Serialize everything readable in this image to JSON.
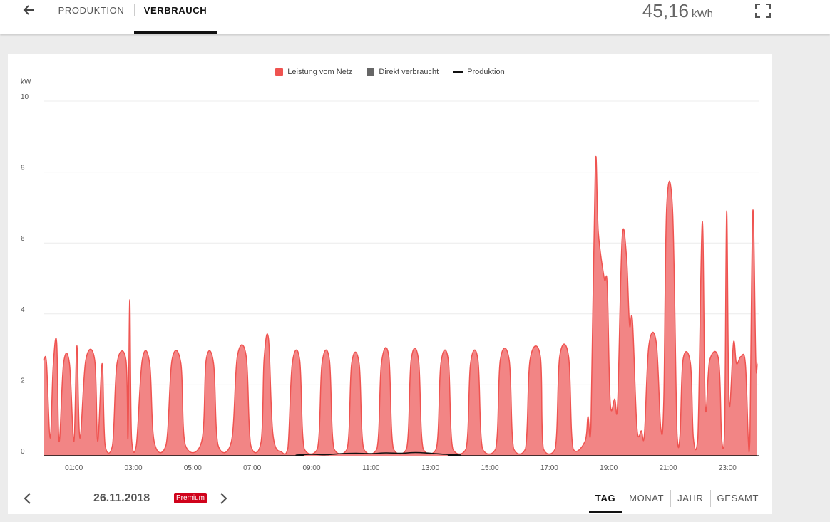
{
  "header": {
    "tabs": [
      {
        "label": "PRODUKTION",
        "active": false
      },
      {
        "label": "VERBRAUCH",
        "active": true
      }
    ],
    "total_value": "45,16",
    "total_unit": "kWh"
  },
  "footer": {
    "date": "26.11.2018",
    "badge": "Premium",
    "ranges": [
      {
        "label": "TAG",
        "active": true
      },
      {
        "label": "MONAT",
        "active": false
      },
      {
        "label": "JAHR",
        "active": false
      },
      {
        "label": "GESAMT",
        "active": false
      }
    ]
  },
  "colors": {
    "grid_draw": "#ef5350",
    "grid_fill": "#f28585",
    "direct": "#666666",
    "production": "#111111",
    "premium": "#d0021b"
  },
  "chart_data": {
    "type": "area",
    "ylabel": "kW",
    "ylim": [
      0,
      10
    ],
    "yticks": [
      "0",
      "2",
      "4",
      "6",
      "8",
      "10"
    ],
    "xlim": [
      0,
      24
    ],
    "xticks": [
      {
        "t": 1,
        "label": "01:00"
      },
      {
        "t": 3,
        "label": "03:00"
      },
      {
        "t": 5,
        "label": "05:00"
      },
      {
        "t": 7,
        "label": "07:00"
      },
      {
        "t": 9,
        "label": "09:00"
      },
      {
        "t": 11,
        "label": "11:00"
      },
      {
        "t": 13,
        "label": "13:00"
      },
      {
        "t": 15,
        "label": "15:00"
      },
      {
        "t": 17,
        "label": "17:00"
      },
      {
        "t": 19,
        "label": "19:00"
      },
      {
        "t": 21,
        "label": "21:00"
      },
      {
        "t": 23,
        "label": "23:00"
      }
    ],
    "legend": [
      {
        "name": "Leistung vom Netz",
        "kind": "box",
        "color": "#ef5350"
      },
      {
        "name": "Direkt verbraucht",
        "kind": "box",
        "color": "#666666"
      },
      {
        "name": "Produktion",
        "kind": "line",
        "color": "#111111"
      }
    ],
    "series": [
      {
        "name": "Leistung vom Netz",
        "points": [
          [
            0.0,
            2.7
          ],
          [
            0.08,
            2.6
          ],
          [
            0.2,
            0.5
          ],
          [
            0.3,
            2.5
          ],
          [
            0.42,
            3.2
          ],
          [
            0.5,
            0.4
          ],
          [
            0.65,
            2.6
          ],
          [
            0.85,
            2.6
          ],
          [
            1.0,
            0.4
          ],
          [
            1.1,
            3.1
          ],
          [
            1.2,
            0.5
          ],
          [
            1.4,
            2.7
          ],
          [
            1.7,
            2.7
          ],
          [
            1.8,
            0.4
          ],
          [
            1.95,
            2.6
          ],
          [
            2.05,
            0.3
          ],
          [
            2.3,
            0.3
          ],
          [
            2.45,
            2.6
          ],
          [
            2.75,
            2.7
          ],
          [
            2.82,
            0.5
          ],
          [
            2.88,
            4.4
          ],
          [
            2.94,
            0.5
          ],
          [
            3.1,
            0.3
          ],
          [
            3.3,
            2.7
          ],
          [
            3.55,
            2.6
          ],
          [
            3.7,
            0.4
          ],
          [
            4.1,
            0.3
          ],
          [
            4.3,
            2.7
          ],
          [
            4.6,
            2.6
          ],
          [
            4.75,
            0.3
          ],
          [
            5.3,
            0.4
          ],
          [
            5.45,
            2.7
          ],
          [
            5.7,
            2.6
          ],
          [
            5.85,
            0.3
          ],
          [
            6.3,
            0.4
          ],
          [
            6.5,
            2.8
          ],
          [
            6.8,
            2.8
          ],
          [
            6.95,
            0.3
          ],
          [
            7.3,
            0.4
          ],
          [
            7.4,
            2.7
          ],
          [
            7.55,
            3.3
          ],
          [
            7.7,
            0.6
          ],
          [
            8.0,
            0.1
          ],
          [
            8.2,
            0.2
          ],
          [
            8.35,
            2.6
          ],
          [
            8.6,
            2.7
          ],
          [
            8.75,
            0.2
          ],
          [
            9.2,
            0.2
          ],
          [
            9.35,
            2.6
          ],
          [
            9.6,
            2.7
          ],
          [
            9.75,
            0.2
          ],
          [
            10.2,
            0.2
          ],
          [
            10.35,
            2.6
          ],
          [
            10.6,
            2.6
          ],
          [
            10.75,
            0.2
          ],
          [
            11.2,
            0.2
          ],
          [
            11.35,
            2.6
          ],
          [
            11.6,
            2.8
          ],
          [
            11.75,
            0.2
          ],
          [
            12.2,
            0.2
          ],
          [
            12.35,
            2.7
          ],
          [
            12.6,
            2.7
          ],
          [
            12.75,
            0.2
          ],
          [
            13.2,
            0.2
          ],
          [
            13.35,
            2.6
          ],
          [
            13.6,
            2.7
          ],
          [
            13.75,
            0.2
          ],
          [
            14.2,
            0.2
          ],
          [
            14.35,
            2.6
          ],
          [
            14.6,
            2.7
          ],
          [
            14.75,
            0.2
          ],
          [
            15.2,
            0.2
          ],
          [
            15.35,
            2.7
          ],
          [
            15.65,
            2.7
          ],
          [
            15.8,
            0.2
          ],
          [
            16.2,
            0.2
          ],
          [
            16.35,
            2.7
          ],
          [
            16.7,
            2.8
          ],
          [
            16.8,
            0.2
          ],
          [
            17.2,
            0.2
          ],
          [
            17.35,
            2.8
          ],
          [
            17.65,
            2.8
          ],
          [
            17.8,
            0.2
          ],
          [
            18.2,
            0.4
          ],
          [
            18.3,
            1.1
          ],
          [
            18.4,
            0.8
          ],
          [
            18.55,
            8.2
          ],
          [
            18.65,
            6.3
          ],
          [
            18.85,
            5.0
          ],
          [
            18.95,
            4.8
          ],
          [
            19.05,
            1.5
          ],
          [
            19.2,
            1.6
          ],
          [
            19.3,
            1.5
          ],
          [
            19.45,
            6.1
          ],
          [
            19.6,
            5.6
          ],
          [
            19.7,
            3.7
          ],
          [
            19.8,
            3.8
          ],
          [
            19.95,
            0.8
          ],
          [
            20.1,
            0.7
          ],
          [
            20.2,
            0.6
          ],
          [
            20.35,
            3.1
          ],
          [
            20.6,
            3.2
          ],
          [
            20.75,
            0.8
          ],
          [
            20.85,
            1.5
          ],
          [
            20.95,
            7.0
          ],
          [
            21.15,
            6.9
          ],
          [
            21.3,
            0.6
          ],
          [
            21.4,
            0.6
          ],
          [
            21.5,
            2.7
          ],
          [
            21.75,
            2.6
          ],
          [
            21.85,
            0.5
          ],
          [
            22.0,
            0.5
          ],
          [
            22.15,
            6.6
          ],
          [
            22.25,
            1.4
          ],
          [
            22.4,
            2.7
          ],
          [
            22.7,
            2.7
          ],
          [
            22.8,
            0.5
          ],
          [
            22.9,
            0.7
          ],
          [
            22.97,
            6.9
          ],
          [
            23.05,
            1.5
          ],
          [
            23.2,
            3.2
          ],
          [
            23.3,
            2.6
          ],
          [
            23.45,
            2.8
          ],
          [
            23.6,
            2.6
          ],
          [
            23.7,
            0.4
          ],
          [
            23.75,
            0.4
          ],
          [
            23.85,
            6.9
          ],
          [
            23.95,
            2.7
          ],
          [
            24.0,
            2.6
          ]
        ]
      },
      {
        "name": "Produktion",
        "points": [
          [
            0.0,
            0.0
          ],
          [
            7.9,
            0.0
          ],
          [
            8.5,
            0.02
          ],
          [
            9.0,
            0.04
          ],
          [
            9.5,
            0.03
          ],
          [
            10.0,
            0.06
          ],
          [
            10.5,
            0.07
          ],
          [
            11.0,
            0.06
          ],
          [
            11.5,
            0.08
          ],
          [
            12.0,
            0.07
          ],
          [
            12.5,
            0.09
          ],
          [
            13.0,
            0.07
          ],
          [
            13.5,
            0.04
          ],
          [
            14.0,
            0.02
          ],
          [
            14.5,
            0.0
          ],
          [
            24.0,
            0.0
          ]
        ]
      }
    ]
  }
}
